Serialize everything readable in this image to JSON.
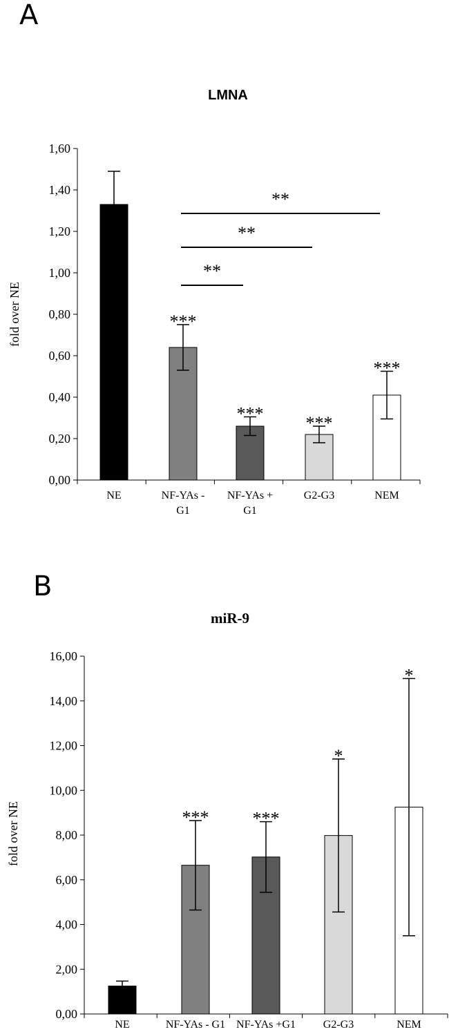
{
  "chart_data": [
    {
      "type": "bar",
      "panel": "A",
      "title": "LMNA",
      "xlabel": "",
      "ylabel": "fold over NE",
      "ylim": [
        0,
        1.6
      ],
      "yticks": [
        "0,00",
        "0,20",
        "0,40",
        "0,60",
        "0,80",
        "1,00",
        "1,20",
        "1,40",
        "1,60"
      ],
      "categories": [
        [
          "NE"
        ],
        [
          "NF-YAs -",
          "G1"
        ],
        [
          "NF-YAs +",
          "G1"
        ],
        [
          "G2-G3"
        ],
        [
          "NEM"
        ]
      ],
      "values": [
        1.33,
        0.64,
        0.26,
        0.22,
        0.41
      ],
      "errors": [
        0.16,
        0.11,
        0.045,
        0.04,
        0.115
      ],
      "bar_colors": [
        "#000000",
        "#808080",
        "#595959",
        "#d9d9d9",
        "#ffffff"
      ],
      "bar_stars": [
        "",
        "***",
        "***",
        "***",
        "***"
      ],
      "brackets": [
        {
          "from": 1,
          "to": 2,
          "label": "**"
        },
        {
          "from": 1,
          "to": 3,
          "label": "**"
        },
        {
          "from": 1,
          "to": 4,
          "label": "**"
        }
      ],
      "grid": false
    },
    {
      "type": "bar",
      "panel": "B",
      "title": "miR-9",
      "xlabel": "",
      "ylabel": "fold over NE",
      "ylim": [
        0,
        16
      ],
      "yticks": [
        "0,00",
        "2,00",
        "4,00",
        "6,00",
        "8,00",
        "10,00",
        "12,00",
        "14,00",
        "16,00"
      ],
      "categories": [
        [
          "NE"
        ],
        [
          "NF-YAs - G1"
        ],
        [
          "NF-YAs +G1"
        ],
        [
          "G2-G3"
        ],
        [
          "NEM"
        ]
      ],
      "values": [
        1.25,
        6.65,
        7.02,
        7.98,
        9.25
      ],
      "errors": [
        0.22,
        2.0,
        1.58,
        3.42,
        5.75
      ],
      "bar_colors": [
        "#000000",
        "#808080",
        "#595959",
        "#d9d9d9",
        "#ffffff"
      ],
      "bar_stars": [
        "",
        "***",
        "***",
        "*",
        "*"
      ],
      "grid": false
    }
  ]
}
